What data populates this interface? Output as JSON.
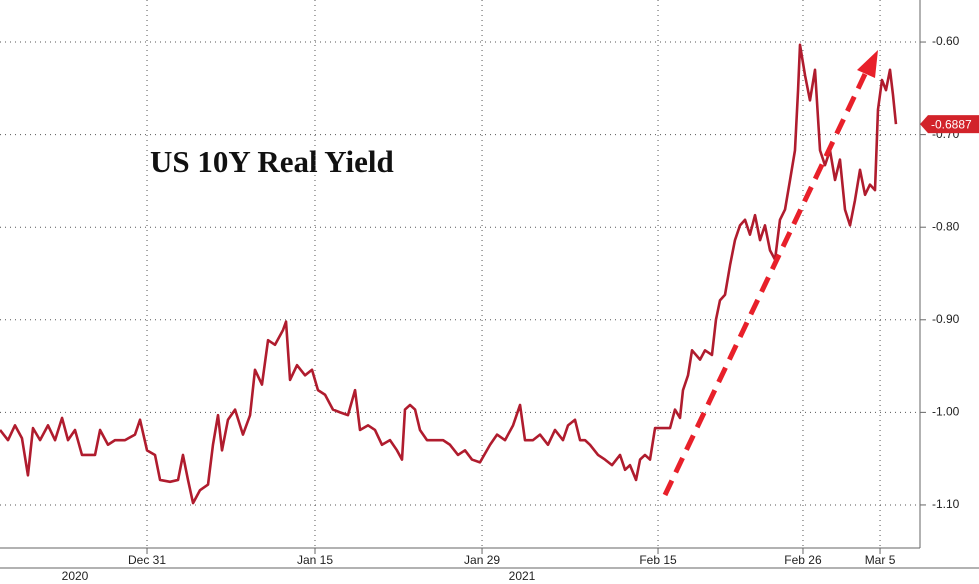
{
  "chart_data": {
    "type": "line",
    "title": "US 10Y Real Yield",
    "color": "#b01c2e",
    "grid": true,
    "xlim": [
      -12.84,
      67.51
    ],
    "ylim": [
      -1.1465,
      -0.5546
    ],
    "xticks": [
      {
        "value": 0,
        "label": "Dec 31"
      },
      {
        "value": 14.67,
        "label": "Jan 15"
      },
      {
        "value": 29.26,
        "label": "Jan 29"
      },
      {
        "value": 44.63,
        "label": "Feb 15"
      },
      {
        "value": 57.29,
        "label": "Feb 26"
      },
      {
        "value": 64.02,
        "label": "Mar 5"
      }
    ],
    "yticks": [
      {
        "value": -0.6,
        "label": "-0.60"
      },
      {
        "value": -0.7,
        "label": "-0.70"
      },
      {
        "value": -0.8,
        "label": "-0.80"
      },
      {
        "value": -0.9,
        "label": "-0.90"
      },
      {
        "value": -1.0,
        "label": "-1.00"
      },
      {
        "value": -1.1,
        "label": "-1.10"
      }
    ],
    "year_labels": [
      "2020",
      "2021"
    ],
    "last_value": -0.6887,
    "x": [
      -12.84,
      -12.14,
      -11.53,
      -10.92,
      -10.4,
      -9.96,
      -9.34,
      -8.65,
      -8.03,
      -7.42,
      -6.9,
      -6.29,
      -5.68,
      -4.54,
      -4.1,
      -3.41,
      -2.79,
      -1.92,
      -1.05,
      -0.61,
      0,
      0.7,
      1.14,
      2.01,
      2.71,
      3.14,
      3.58,
      4.02,
      4.63,
      5.33,
      5.76,
      6.2,
      6.55,
      7.07,
      7.69,
      8.38,
      9.0,
      9.43,
      10.04,
      10.57,
      11.18,
      11.88,
      12.14,
      12.49,
      13.1,
      13.8,
      14.41,
      14.93,
      15.55,
      16.24,
      16.86,
      17.55,
      18.17,
      18.6,
      19.3,
      19.91,
      20.52,
      21.22,
      21.83,
      22.27,
      22.53,
      22.97,
      23.41,
      23.84,
      24.45,
      25.15,
      25.85,
      26.46,
      27.16,
      27.77,
      28.38,
      29.08,
      29.96,
      30.57,
      31.27,
      31.97,
      32.58,
      33.01,
      33.71,
      34.32,
      35.02,
      35.63,
      36.33,
      36.77,
      37.38,
      37.82,
      38.25,
      38.69,
      39.39,
      40.0,
      40.61,
      41.31,
      41.75,
      42.18,
      42.71,
      43.06,
      43.49,
      43.93,
      44.37,
      45.68,
      46.11,
      46.55,
      46.81,
      47.25,
      47.6,
      48.3,
      48.73,
      49.34,
      49.69,
      50.04,
      50.48,
      50.92,
      51.35,
      51.79,
      52.23,
      52.66,
      53.1,
      53.54,
      53.97,
      54.41,
      54.85,
      55.28,
      55.72,
      56.16,
      56.59,
      56.86,
      57.03,
      57.47,
      57.9,
      58.34,
      58.78,
      59.21,
      59.65,
      60.09,
      60.52,
      60.96,
      61.4,
      61.83,
      62.27,
      62.71,
      63.14,
      63.58,
      63.84,
      64.19,
      64.54,
      64.89,
      65.15,
      65.41
    ],
    "values": [
      -1.019,
      -1.03,
      -1.014,
      -1.028,
      -1.068,
      -1.017,
      -1.03,
      -1.014,
      -1.03,
      -1.006,
      -1.03,
      -1.019,
      -1.046,
      -1.046,
      -1.019,
      -1.035,
      -1.03,
      -1.03,
      -1.024,
      -1.008,
      -1.041,
      -1.046,
      -1.073,
      -1.075,
      -1.073,
      -1.046,
      -1.073,
      -1.098,
      -1.084,
      -1.078,
      -1.035,
      -1.003,
      -1.041,
      -1.008,
      -0.997,
      -1.024,
      -1.003,
      -0.954,
      -0.97,
      -0.922,
      -0.927,
      -0.911,
      -0.902,
      -0.965,
      -0.949,
      -0.96,
      -0.954,
      -0.976,
      -0.981,
      -0.997,
      -1.0,
      -1.003,
      -0.976,
      -1.019,
      -1.014,
      -1.019,
      -1.035,
      -1.03,
      -1.041,
      -1.051,
      -0.997,
      -0.992,
      -0.997,
      -1.019,
      -1.03,
      -1.03,
      -1.03,
      -1.035,
      -1.046,
      -1.041,
      -1.051,
      -1.054,
      -1.035,
      -1.024,
      -1.03,
      -1.014,
      -0.992,
      -1.03,
      -1.03,
      -1.024,
      -1.035,
      -1.019,
      -1.03,
      -1.014,
      -1.008,
      -1.03,
      -1.03,
      -1.035,
      -1.046,
      -1.051,
      -1.057,
      -1.046,
      -1.062,
      -1.057,
      -1.073,
      -1.051,
      -1.046,
      -1.051,
      -1.017,
      -1.017,
      -0.997,
      -1.006,
      -0.976,
      -0.96,
      -0.933,
      -0.943,
      -0.933,
      -0.938,
      -0.9,
      -0.879,
      -0.873,
      -0.841,
      -0.814,
      -0.798,
      -0.792,
      -0.808,
      -0.787,
      -0.814,
      -0.798,
      -0.825,
      -0.835,
      -0.792,
      -0.781,
      -0.749,
      -0.717,
      -0.652,
      -0.603,
      -0.636,
      -0.663,
      -0.63,
      -0.717,
      -0.733,
      -0.717,
      -0.749,
      -0.727,
      -0.781,
      -0.798,
      -0.771,
      -0.738,
      -0.765,
      -0.754,
      -0.76,
      -0.673,
      -0.641,
      -0.652,
      -0.63,
      -0.657,
      -0.6887
    ]
  }
}
